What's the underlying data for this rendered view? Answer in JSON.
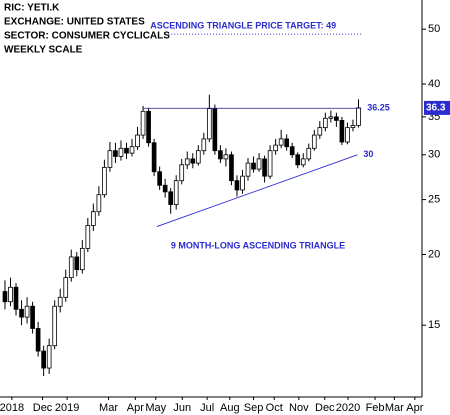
{
  "chart_data": {
    "type": "candlestick",
    "yscale": "log",
    "info_lines": [
      "RIC: YETI.K",
      "EXCHANGE: UNITED STATES",
      "SECTOR: CONSUMER CYCLICALS",
      "WEEKLY SCALE"
    ],
    "annotation_color": "#2b2bd0",
    "pattern_label": "9 MONTH-LONG ASCENDING TRIANGLE",
    "target": {
      "label": "ASCENDING TRIANGLE PRICE TARGET: 49",
      "x": [
        29,
        64.5
      ],
      "value": 49
    },
    "resistance": {
      "x": [
        25,
        64.5
      ],
      "values": [
        36.25,
        36.25
      ]
    },
    "support": {
      "x": [
        27.5,
        63.8
      ],
      "values": [
        22.4,
        30
      ]
    },
    "last_price": {
      "value": 36.3,
      "label": "36.3"
    },
    "up_color": "#ffffff",
    "down_color": "#000000",
    "open": [
      17.2,
      16.5,
      17.5,
      16.0,
      15.5,
      16.2,
      14.8,
      13.5,
      12.6,
      13.8,
      16.2,
      16.8,
      18.2,
      19.8,
      18.8,
      20.5,
      22.5,
      23.8,
      25.5,
      28.5,
      30.5,
      29.8,
      30.8,
      30.2,
      31.0,
      32.5,
      35.8,
      31.5,
      28.0,
      26.5,
      25.8,
      24.5,
      27.0,
      28.8,
      29.5,
      29.0,
      30.5,
      32.0,
      36.2,
      30.5,
      29.5,
      30.0,
      27.0,
      26.0,
      27.5,
      29.0,
      28.3,
      29.5,
      27.5,
      30.5,
      31.2,
      32.0,
      31.0,
      30.0,
      28.8,
      29.5,
      30.8,
      32.5,
      33.5,
      34.8,
      35.0,
      34.5,
      31.6,
      33.5,
      33.8
    ],
    "high": [
      18.0,
      18.2,
      17.8,
      16.6,
      16.8,
      16.5,
      15.2,
      13.8,
      14.2,
      16.6,
      17.4,
      18.8,
      20.4,
      20.2,
      21.2,
      23.2,
      24.6,
      26.4,
      29.4,
      31.6,
      31.5,
      31.8,
      31.5,
      32.0,
      33.6,
      36.6,
      36.2,
      32.0,
      28.6,
      27.2,
      26.2,
      27.6,
      29.5,
      30.4,
      30.2,
      31.2,
      32.8,
      38.3,
      36.8,
      31.2,
      30.8,
      30.4,
      27.6,
      28.2,
      29.6,
      29.8,
      30.2,
      29.9,
      31.2,
      32.0,
      33.2,
      32.6,
      31.5,
      30.3,
      30.2,
      31.4,
      33.2,
      34.4,
      35.6,
      35.9,
      35.6,
      35.0,
      34.2,
      34.6,
      37.6
    ],
    "low": [
      16.0,
      16.2,
      15.6,
      15.0,
      15.1,
      14.5,
      13.2,
      12.2,
      12.3,
      13.6,
      15.8,
      16.5,
      17.9,
      18.3,
      18.5,
      20.2,
      22.0,
      23.4,
      25.2,
      28.0,
      29.0,
      29.3,
      29.5,
      29.8,
      30.6,
      32.0,
      31.0,
      27.5,
      26.0,
      25.2,
      23.6,
      24.0,
      26.6,
      28.3,
      28.4,
      28.7,
      30.0,
      31.6,
      30.0,
      29.0,
      28.6,
      26.5,
      25.3,
      25.6,
      27.0,
      27.9,
      28.0,
      26.8,
      27.2,
      30.0,
      30.8,
      30.5,
      29.6,
      28.4,
      28.5,
      29.2,
      30.5,
      32.0,
      33.0,
      34.2,
      33.6,
      31.2,
      31.3,
      33.0,
      33.5
    ],
    "close": [
      16.5,
      17.5,
      16.0,
      15.5,
      16.2,
      14.8,
      13.5,
      12.6,
      13.8,
      16.2,
      16.8,
      18.2,
      19.8,
      18.8,
      20.5,
      22.5,
      23.8,
      25.5,
      28.5,
      30.5,
      29.8,
      30.8,
      30.2,
      31.0,
      32.5,
      35.8,
      31.5,
      28.0,
      26.5,
      25.8,
      24.5,
      27.0,
      28.8,
      29.5,
      29.0,
      30.5,
      32.0,
      36.2,
      30.5,
      29.5,
      30.0,
      27.0,
      26.0,
      27.5,
      29.0,
      28.3,
      29.5,
      27.5,
      30.5,
      31.2,
      32.0,
      31.0,
      30.0,
      28.8,
      29.5,
      30.8,
      32.5,
      33.5,
      34.8,
      35.0,
      34.5,
      31.6,
      33.5,
      33.8,
      36.3
    ],
    "xlim": [
      -0.9,
      75.5
    ],
    "xticks": [
      {
        "value": 1.25,
        "label": "2018"
      },
      {
        "value": 6.8,
        "label": "Dec"
      },
      {
        "value": 11.25,
        "label": "2019"
      },
      {
        "value": 18.75,
        "label": "Mar"
      },
      {
        "value": 23.6,
        "label": "Apr"
      },
      {
        "value": 27.3,
        "label": "May"
      },
      {
        "value": 32.1,
        "label": "Jun"
      },
      {
        "value": 36.6,
        "label": "Jul"
      },
      {
        "value": 40.7,
        "label": "Aug"
      },
      {
        "value": 45,
        "label": "Sep"
      },
      {
        "value": 48.75,
        "label": "Oct"
      },
      {
        "value": 53.2,
        "label": "Nov"
      },
      {
        "value": 57.9,
        "label": "Dec"
      },
      {
        "value": 62.1,
        "label": "2020"
      },
      {
        "value": 67,
        "label": "Feb"
      },
      {
        "value": 70.5,
        "label": "Mar"
      },
      {
        "value": 74.2,
        "label": "Apr"
      }
    ],
    "ylim": [
      11.2,
      56.3
    ],
    "yticks": [
      15,
      20,
      25,
      30,
      35,
      40,
      50
    ]
  }
}
